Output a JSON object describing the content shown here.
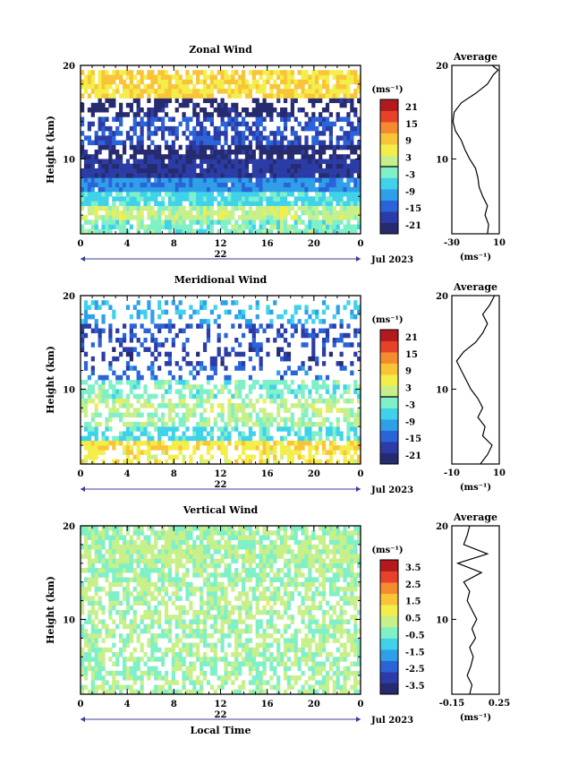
{
  "figure": {
    "date_label": "Jul 2023",
    "xlabel": "Local Time",
    "x_ticks": [
      "0",
      "4",
      "8",
      "12",
      "16",
      "20",
      "0"
    ],
    "day_label": "22",
    "y_ticks": [
      "20",
      "10"
    ],
    "ylabel": "Height (km)",
    "colorbar_unit": "(ms⁻¹)",
    "avg_title": "Average",
    "avg_unit": "(ms⁻¹)"
  },
  "colors": {
    "colormap": [
      "#262a6e",
      "#2b3ca6",
      "#2a64d8",
      "#2f9fe8",
      "#3fd2ea",
      "#7ff0c8",
      "#c8f08a",
      "#f3ee4a",
      "#f9c437",
      "#f58a2e",
      "#e8412a",
      "#b31a1e"
    ]
  },
  "chart_data": [
    {
      "type": "heatmap",
      "title": "Zonal Wind",
      "xlabel": "",
      "ylabel": "Height (km)",
      "xlim": [
        0,
        24
      ],
      "ylim": [
        2,
        20
      ],
      "colorbar_ticks": [
        "21",
        "15",
        "9",
        "3",
        "-3",
        "-9",
        "-15",
        "-21"
      ],
      "colorbar_range": [
        -24,
        24
      ],
      "rows": [
        {
          "z": 18.0,
          "v": 8,
          "cov": 0.8
        },
        {
          "z": 15.0,
          "v": -22,
          "cov": 0.5
        },
        {
          "z": 14.0,
          "v": -16,
          "cov": 0.55
        },
        {
          "z": 12.5,
          "v": -16,
          "cov": 0.6
        },
        {
          "z": 11.0,
          "v": -22,
          "cov": 0.8
        },
        {
          "z": 9.0,
          "v": -19,
          "cov": 0.95
        },
        {
          "z": 7.5,
          "v": -11,
          "cov": 0.95
        },
        {
          "z": 6.0,
          "v": -5,
          "cov": 0.9
        },
        {
          "z": 4.5,
          "v": 2,
          "cov": 0.85
        },
        {
          "z": 3.0,
          "v": -2,
          "cov": 0.8
        }
      ],
      "average": {
        "xlim": [
          -30,
          10
        ],
        "x_ticks": [
          "-30",
          "10"
        ],
        "profile": [
          {
            "z": 2,
            "u": 0
          },
          {
            "z": 3,
            "u": 1
          },
          {
            "z": 4,
            "u": -2
          },
          {
            "z": 5,
            "u": 0
          },
          {
            "z": 6,
            "u": -4
          },
          {
            "z": 7,
            "u": -7
          },
          {
            "z": 8,
            "u": -8
          },
          {
            "z": 9,
            "u": -10
          },
          {
            "z": 10,
            "u": -15
          },
          {
            "z": 11,
            "u": -19
          },
          {
            "z": 12,
            "u": -22
          },
          {
            "z": 13,
            "u": -27
          },
          {
            "z": 14,
            "u": -29
          },
          {
            "z": 15,
            "u": -28
          },
          {
            "z": 16,
            "u": -22
          },
          {
            "z": 17,
            "u": -10
          },
          {
            "z": 18,
            "u": 0
          },
          {
            "z": 19,
            "u": 5
          },
          {
            "z": 19.5,
            "u": 9
          },
          {
            "z": 20,
            "u": 4
          }
        ]
      }
    },
    {
      "type": "heatmap",
      "title": "Meridional Wind",
      "xlabel": "",
      "ylabel": "Height (km)",
      "xlim": [
        0,
        24
      ],
      "ylim": [
        2,
        20
      ],
      "colorbar_ticks": [
        "21",
        "15",
        "9",
        "3",
        "-3",
        "-9",
        "-15",
        "-21"
      ],
      "colorbar_range": [
        -24,
        24
      ],
      "rows": [
        {
          "z": 18.0,
          "v": -8,
          "cov": 0.3
        },
        {
          "z": 16.0,
          "v": -16,
          "cov": 0.35
        },
        {
          "z": 13.5,
          "v": -18,
          "cov": 0.3
        },
        {
          "z": 12.0,
          "v": -14,
          "cov": 0.35
        },
        {
          "z": 10.0,
          "v": -2,
          "cov": 0.55
        },
        {
          "z": 8.5,
          "v": 2,
          "cov": 0.55
        },
        {
          "z": 7.0,
          "v": 0,
          "cov": 0.6
        },
        {
          "z": 5.5,
          "v": -5,
          "cov": 0.65
        },
        {
          "z": 4.0,
          "v": 7,
          "cov": 0.7
        },
        {
          "z": 3.0,
          "v": 6,
          "cov": 0.5
        }
      ],
      "average": {
        "xlim": [
          -10,
          10
        ],
        "x_ticks": [
          "-10",
          "10"
        ],
        "profile": [
          {
            "z": 2,
            "u": 2
          },
          {
            "z": 3,
            "u": 5
          },
          {
            "z": 4,
            "u": 7
          },
          {
            "z": 5,
            "u": 3
          },
          {
            "z": 6,
            "u": 4
          },
          {
            "z": 7,
            "u": 1
          },
          {
            "z": 8,
            "u": 3
          },
          {
            "z": 9,
            "u": 1
          },
          {
            "z": 10,
            "u": -2
          },
          {
            "z": 11,
            "u": -4
          },
          {
            "z": 12,
            "u": -6
          },
          {
            "z": 13,
            "u": -8
          },
          {
            "z": 14,
            "u": -5
          },
          {
            "z": 15,
            "u": 0
          },
          {
            "z": 16,
            "u": 3
          },
          {
            "z": 17,
            "u": 5
          },
          {
            "z": 18,
            "u": 3
          },
          {
            "z": 19,
            "u": 6
          },
          {
            "z": 20,
            "u": 8
          }
        ]
      }
    },
    {
      "type": "heatmap",
      "title": "Vertical Wind",
      "xlabel": "Local Time",
      "ylabel": "Height (km)",
      "xlim": [
        0,
        24
      ],
      "ylim": [
        2,
        20
      ],
      "colorbar_ticks": [
        "3.5",
        "2.5",
        "1.5",
        "0.5",
        "-0.5",
        "-1.5",
        "-2.5",
        "-3.5"
      ],
      "colorbar_range": [
        -4,
        4
      ],
      "rows": [
        {
          "z": 19.0,
          "v": 0.1,
          "cov": 0.8
        },
        {
          "z": 17.5,
          "v": 0.2,
          "cov": 0.85
        },
        {
          "z": 15.0,
          "v": -0.1,
          "cov": 0.7
        },
        {
          "z": 13.0,
          "v": 0.1,
          "cov": 0.65
        },
        {
          "z": 11.0,
          "v": 0.2,
          "cov": 0.6
        },
        {
          "z": 9.0,
          "v": 0.0,
          "cov": 0.6
        },
        {
          "z": 7.0,
          "v": 0.1,
          "cov": 0.6
        },
        {
          "z": 5.0,
          "v": -0.1,
          "cov": 0.6
        },
        {
          "z": 3.0,
          "v": 0.1,
          "cov": 0.6
        }
      ],
      "average": {
        "xlim": [
          -0.15,
          0.25
        ],
        "x_ticks": [
          "-0.15",
          "0.25"
        ],
        "profile": [
          {
            "z": 2,
            "u": 0.0
          },
          {
            "z": 3,
            "u": 0.02
          },
          {
            "z": 4,
            "u": -0.02
          },
          {
            "z": 5,
            "u": 0.01
          },
          {
            "z": 6,
            "u": 0.03
          },
          {
            "z": 7,
            "u": 0.0
          },
          {
            "z": 8,
            "u": 0.05
          },
          {
            "z": 9,
            "u": 0.02
          },
          {
            "z": 10,
            "u": 0.06
          },
          {
            "z": 11,
            "u": 0.02
          },
          {
            "z": 12,
            "u": -0.02
          },
          {
            "z": 13,
            "u": 0.0
          },
          {
            "z": 14,
            "u": -0.05
          },
          {
            "z": 15,
            "u": 0.1
          },
          {
            "z": 16,
            "u": -0.1
          },
          {
            "z": 17,
            "u": 0.15
          },
          {
            "z": 18,
            "u": -0.05
          },
          {
            "z": 19,
            "u": -0.02
          },
          {
            "z": 20,
            "u": 0.0
          }
        ]
      }
    }
  ]
}
